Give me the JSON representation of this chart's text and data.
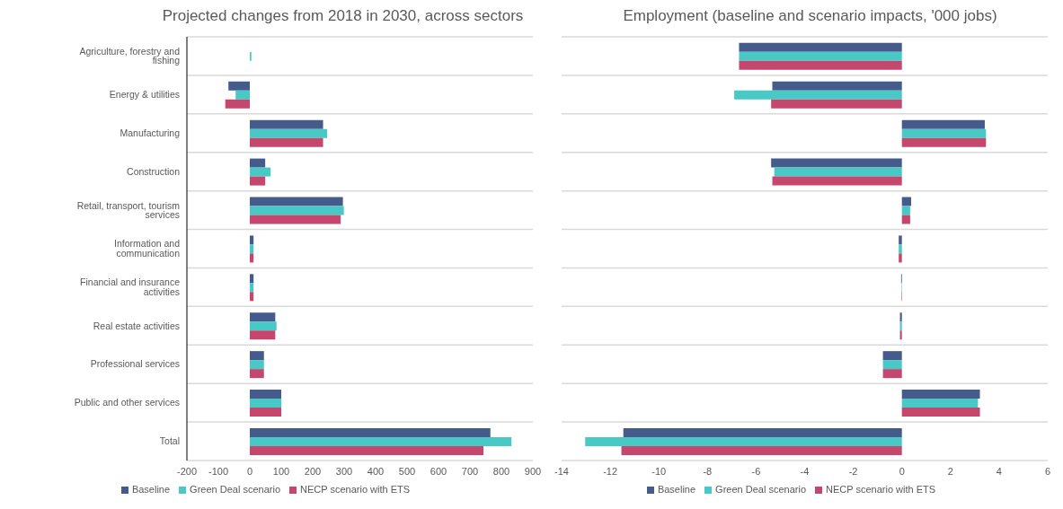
{
  "chart_data": [
    {
      "type": "bar",
      "orientation": "horizontal",
      "title": "Projected changes from 2018 in 2030, across sectors",
      "categories": [
        "Agriculture, forestry and fishing",
        "Energy & utilities",
        "Manufacturing",
        "Construction",
        "Retail, transport, tourism services",
        "Information and communication",
        "Financial and insurance activities",
        "Real estate activities",
        "Professional services",
        "Public and other services",
        "Total"
      ],
      "series": [
        {
          "name": "Baseline",
          "color": "#445b8c",
          "values": [
            0,
            -68,
            233,
            49,
            296,
            12,
            12,
            81,
            45,
            100,
            765
          ]
        },
        {
          "name": "Green Deal scenario",
          "color": "#48c9c5",
          "values": [
            5,
            -45,
            246,
            66,
            299,
            12,
            12,
            85,
            45,
            100,
            832
          ]
        },
        {
          "name": "NECP scenario with ETS",
          "color": "#c5476d",
          "values": [
            0,
            -78,
            233,
            49,
            289,
            12,
            12,
            81,
            45,
            100,
            743
          ]
        }
      ],
      "xlim": [
        -200,
        900
      ],
      "xticks": [
        -200,
        -100,
        0,
        100,
        200,
        300,
        400,
        500,
        600,
        700,
        800,
        900
      ],
      "grid": "y",
      "legend": "bottom"
    },
    {
      "type": "bar",
      "orientation": "horizontal",
      "title": "Employment (baseline and scenario impacts, '000 jobs)",
      "categories": [
        null,
        null,
        null,
        null,
        null,
        null,
        null,
        null,
        null,
        null,
        null
      ],
      "series": [
        {
          "name": "Baseline",
          "color": "#445b8c",
          "values": [
            -6.7,
            -5.33,
            3.41,
            -5.38,
            0.38,
            -0.13,
            -0.03,
            -0.08,
            -0.78,
            3.21,
            -11.46
          ]
        },
        {
          "name": "Green Deal scenario",
          "color": "#48c9c5",
          "values": [
            -6.7,
            -6.9,
            3.46,
            -5.25,
            0.34,
            -0.13,
            -0.02,
            -0.08,
            -0.78,
            3.13,
            -13.03
          ]
        },
        {
          "name": "NECP scenario with ETS",
          "color": "#c5476d",
          "values": [
            -6.7,
            -5.38,
            3.46,
            -5.33,
            0.34,
            -0.13,
            -0.02,
            -0.08,
            -0.78,
            3.21,
            -11.54
          ]
        }
      ],
      "xlim": [
        -14,
        6
      ],
      "xticks": [
        -14,
        -12,
        -10,
        -8,
        -6,
        -4,
        -2,
        0,
        2,
        4,
        6
      ],
      "grid": "y",
      "legend": "bottom",
      "tick_labels": "x"
    }
  ]
}
